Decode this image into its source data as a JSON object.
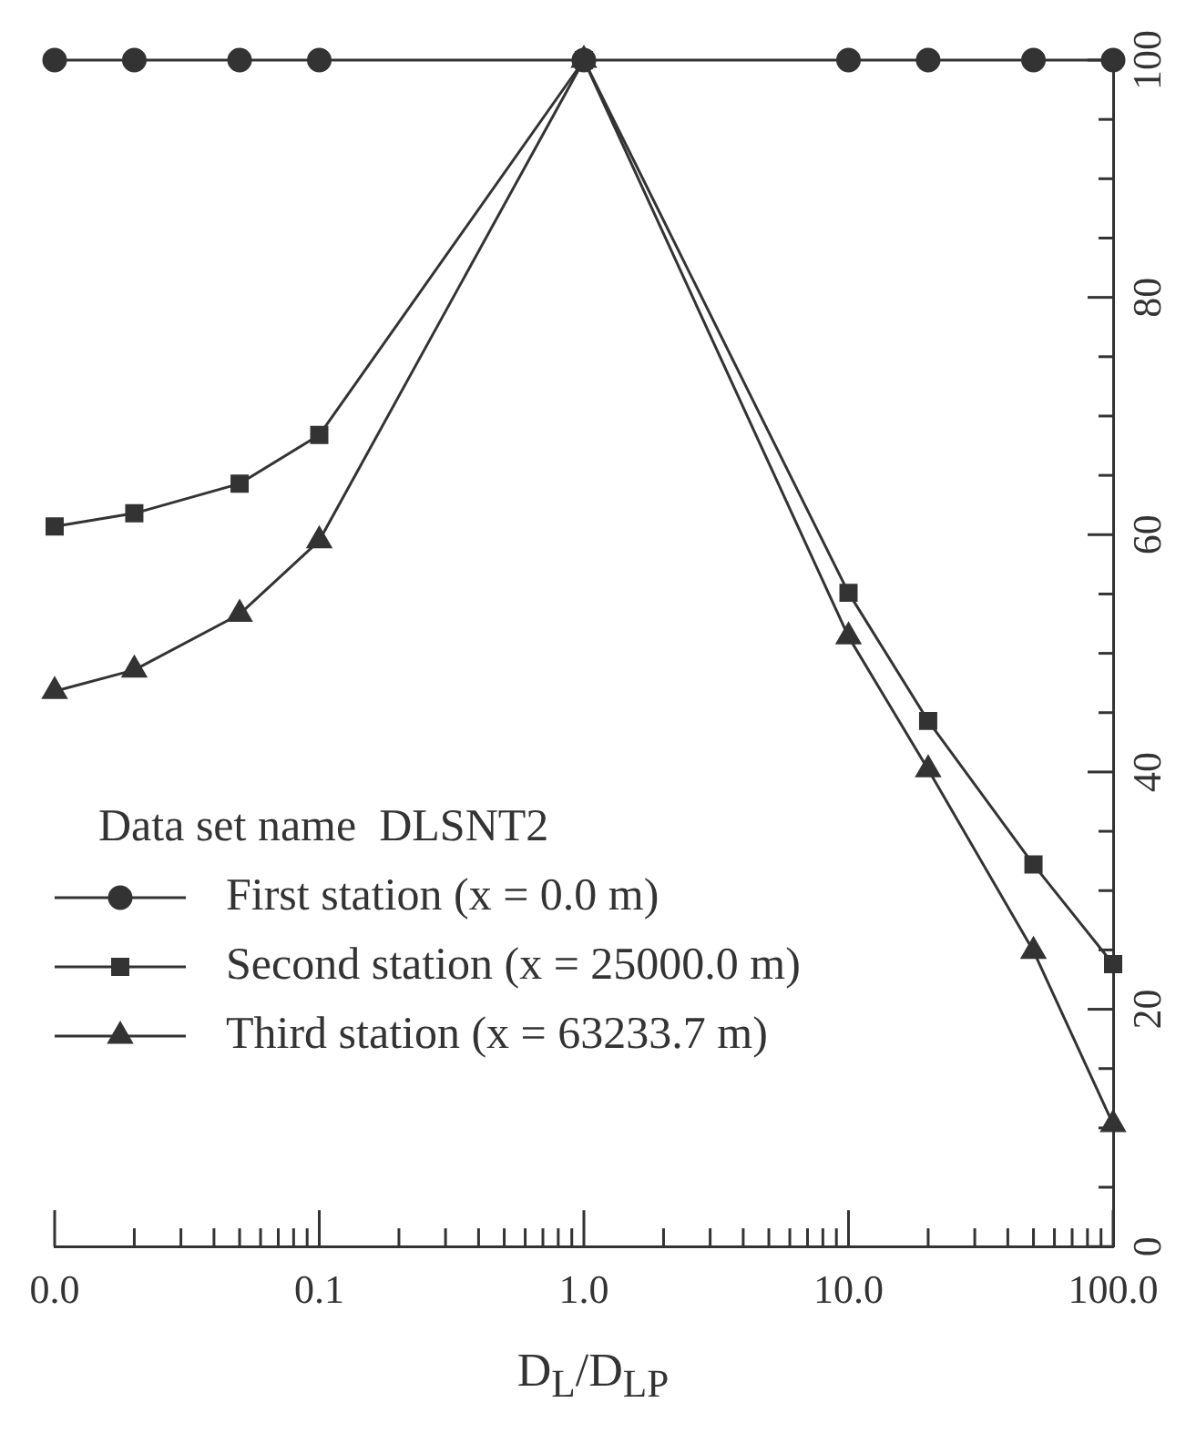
{
  "chart_data": {
    "type": "line",
    "xlabel": "D$_{L}$/D$_{LP}$",
    "legend_title": "Data set name  DLSNT2",
    "legend": "bottom left",
    "log": "x",
    "grid": false,
    "line_style": "solid",
    "x": [
      0.01,
      0.02,
      0.05,
      0.1,
      1,
      10,
      20,
      50,
      100
    ],
    "xlim": [
      0.01,
      100
    ],
    "xticks": [
      {
        "value": 0.01,
        "label": "0.0"
      },
      {
        "value": 0.02,
        "label": null
      },
      {
        "value": 0.03,
        "label": null
      },
      {
        "value": 0.04,
        "label": null
      },
      {
        "value": 0.05,
        "label": null
      },
      {
        "value": 0.06,
        "label": null
      },
      {
        "value": 0.07,
        "label": null
      },
      {
        "value": 0.08,
        "label": null
      },
      {
        "value": 0.09,
        "label": null
      },
      {
        "value": 0.1,
        "label": "0.1"
      },
      {
        "value": 0.2,
        "label": null
      },
      {
        "value": 0.3,
        "label": null
      },
      {
        "value": 0.4,
        "label": null
      },
      {
        "value": 0.5,
        "label": null
      },
      {
        "value": 0.6,
        "label": null
      },
      {
        "value": 0.7,
        "label": null
      },
      {
        "value": 0.8,
        "label": null
      },
      {
        "value": 0.9,
        "label": null
      },
      {
        "value": 1,
        "label": "1.0"
      },
      {
        "value": 2,
        "label": null
      },
      {
        "value": 3,
        "label": null
      },
      {
        "value": 4,
        "label": null
      },
      {
        "value": 5,
        "label": null
      },
      {
        "value": 6,
        "label": null
      },
      {
        "value": 7,
        "label": null
      },
      {
        "value": 8,
        "label": null
      },
      {
        "value": 9,
        "label": null
      },
      {
        "value": 10,
        "label": "10.0"
      },
      {
        "value": 20,
        "label": null
      },
      {
        "value": 30,
        "label": null
      },
      {
        "value": 40,
        "label": null
      },
      {
        "value": 50,
        "label": null
      },
      {
        "value": 60,
        "label": null
      },
      {
        "value": 70,
        "label": null
      },
      {
        "value": 80,
        "label": null
      },
      {
        "value": 90,
        "label": null
      },
      {
        "value": 100,
        "label": "100.0"
      }
    ],
    "ylim": [
      0,
      100
    ],
    "yticks": [
      0,
      {
        "value": 5,
        "label": null
      },
      {
        "value": 10,
        "label": null
      },
      {
        "value": 15,
        "label": null
      },
      20,
      {
        "value": 25,
        "label": null
      },
      {
        "value": 30,
        "label": null
      },
      {
        "value": 35,
        "label": null
      },
      40,
      {
        "value": 45,
        "label": null
      },
      {
        "value": 50,
        "label": null
      },
      {
        "value": 55,
        "label": null
      },
      60,
      {
        "value": 65,
        "label": null
      },
      {
        "value": 70,
        "label": null
      },
      {
        "value": 75,
        "label": null
      },
      80,
      {
        "value": 85,
        "label": null
      },
      {
        "value": 90,
        "label": null
      },
      {
        "value": 95,
        "label": null
      },
      100
    ],
    "series": [
      {
        "name": "First station (x = 0.0 m)",
        "color": "#333333",
        "marker": "circle",
        "values": [
          100,
          100,
          100,
          100,
          100,
          100,
          100,
          100,
          100
        ]
      },
      {
        "name": "Second station (x = 25000.0 m)",
        "color": "#333333",
        "marker": "square",
        "values": [
          60.7,
          61.8,
          64.3,
          68.4,
          100,
          55.1,
          44.3,
          32.2,
          23.8
        ]
      },
      {
        "name": "Third station (x = 63233.7 m)",
        "color": "#333333",
        "marker": "triangle",
        "values": [
          46.8,
          48.6,
          53.3,
          59.5,
          100,
          51.4,
          40.2,
          24.9,
          10.3
        ]
      }
    ]
  }
}
